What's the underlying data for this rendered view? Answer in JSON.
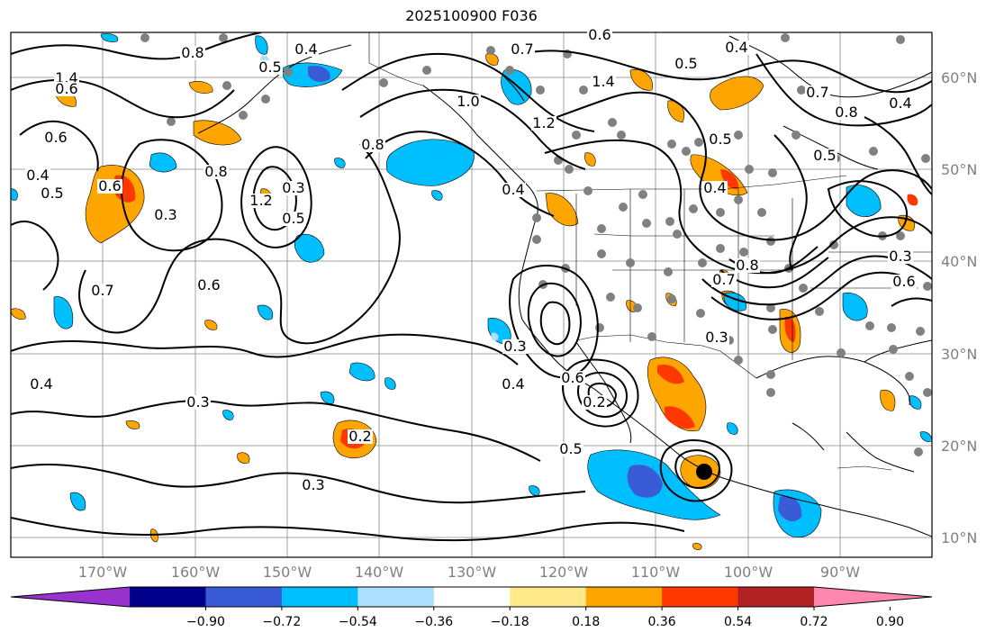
{
  "title": "2025100900 F036",
  "lat_labels": [
    "60°N",
    "50°N",
    "40°N",
    "30°N",
    "20°N",
    "10°N"
  ],
  "lon_labels": [
    "170°W",
    "160°W",
    "150°W",
    "140°W",
    "130°W",
    "120°W",
    "110°W",
    "100°W",
    "90°W"
  ],
  "contour_labels": [
    "0.7",
    "0.8",
    "0.5",
    "0.3",
    "0.6",
    "0.4",
    "0.5",
    "0.6",
    "0.3",
    "0.7",
    "0.6",
    "0.8",
    "1.2",
    "0.3",
    "0.4",
    "0.3",
    "0.6",
    "0.7",
    "0.5",
    "0.4",
    "1.0",
    "1.2",
    "1.4",
    "0.7",
    "0.3",
    "0.5",
    "0.4",
    "0.8",
    "0.8",
    "0.7",
    "0.8",
    "0.6",
    "0.5",
    "0.4",
    "0.3",
    "0.5",
    "0.4",
    "0.6",
    "0.5",
    "0.2",
    "0.3",
    "0.3",
    "0.2",
    "0.5",
    "0.4",
    "1.4",
    "0.6",
    "0.8",
    "0.4"
  ],
  "colorbar": {
    "colors": [
      "#9932CC",
      "#00008B",
      "#3A5BD6",
      "#00BFFF",
      "#ADDFFF",
      "#FFFFFF",
      "#FFE98A",
      "#FFA500",
      "#FF3800",
      "#B22222",
      "#FF86AE"
    ],
    "tick_labels": [
      "−0.90",
      "−0.72",
      "−0.54",
      "−0.36",
      "−0.18",
      "0.18",
      "0.36",
      "0.54",
      "0.72",
      "0.90"
    ]
  },
  "colors": {
    "positive_fill": "#FFA500",
    "strong_positive_fill": "#FF3800",
    "negative_fill": "#00BFFF",
    "strong_negative_fill": "#3A5BD6",
    "station_dot": "#808080",
    "contour": "#000000"
  }
}
